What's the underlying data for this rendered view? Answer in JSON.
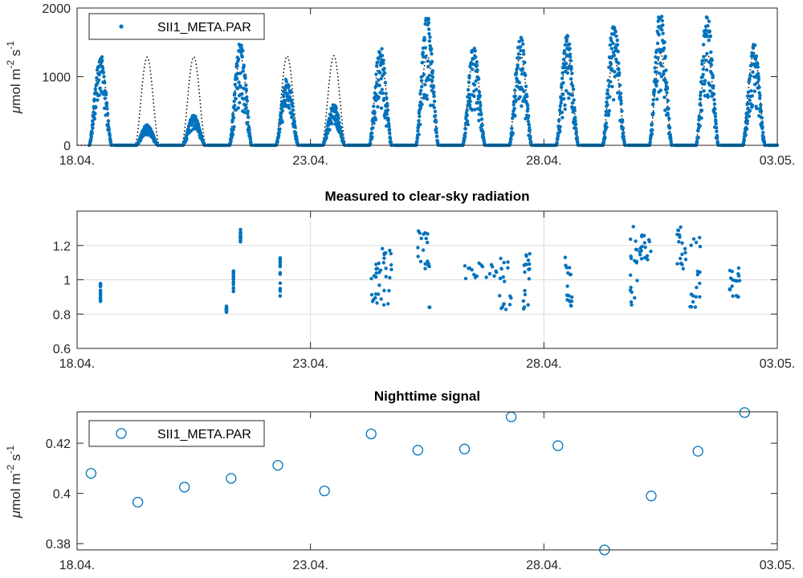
{
  "colors": {
    "series": "#0072BD",
    "clear_sky": "#000000",
    "axis": "#262626",
    "grid": "#dcdcdc"
  },
  "chart_data": [
    {
      "type": "scatter",
      "title": "",
      "xlabel": "",
      "ylabel": "μmol m⁻² s⁻¹",
      "ylabel_parts": {
        "mu": "μ",
        "main": "mol m",
        "exp1": "-2",
        "mid": " s",
        "exp2": "-1"
      },
      "xlim": [
        0,
        15
      ],
      "ylim": [
        0,
        2000
      ],
      "xticks": [
        0,
        5,
        10,
        15
      ],
      "xticklabels": [
        "18.04.",
        "23.04.",
        "28.04.",
        "03.05."
      ],
      "yticks": [
        0,
        1000,
        2000
      ],
      "yticklabels": [
        "0",
        "1000",
        "2000"
      ],
      "grid": false,
      "legend": {
        "placement": "top-left",
        "entries": [
          "SII1_META.PAR"
        ]
      },
      "series": [
        {
          "name": "SII1_META.PAR",
          "style": "dots",
          "daily_peaks": [
            1350,
            300,
            450,
            1520,
            1000,
            600,
            1480,
            1920,
            1470,
            1620,
            1620,
            1870,
            2000,
            1950,
            1500
          ]
        },
        {
          "style": "dotted-line",
          "daily_clear_sky_peak": [
            1280,
            1285,
            1290,
            1295,
            1300,
            1305,
            1310,
            1315,
            1320,
            1325,
            1330,
            1335,
            1340,
            1345,
            1350
          ]
        }
      ]
    },
    {
      "type": "scatter",
      "title": "Measured to clear-sky radiation",
      "xlabel": "",
      "ylabel": "",
      "xlim": [
        0,
        15
      ],
      "ylim": [
        0.6,
        1.4
      ],
      "xticks": [
        0,
        5,
        10,
        15
      ],
      "xticklabels": [
        "18.04.",
        "23.04.",
        "28.04.",
        "03.05."
      ],
      "yticks": [
        0.6,
        0.8,
        1.0,
        1.2
      ],
      "yticklabels": [
        "0.6",
        "0.8",
        "1",
        "1.2"
      ],
      "grid": true,
      "series": [
        {
          "style": "dots",
          "clusters": [
            {
              "x": [
                0.5,
                0.5
              ],
              "y": [
                0.87,
                0.98
              ]
            },
            {
              "x": [
                3.2,
                3.2
              ],
              "y": [
                0.81,
                0.85
              ]
            },
            {
              "x": [
                3.35,
                3.35
              ],
              "y": [
                0.93,
                1.06
              ]
            },
            {
              "x": [
                3.5,
                3.5
              ],
              "y": [
                1.22,
                1.3
              ]
            },
            {
              "x": [
                4.35,
                4.35
              ],
              "y": [
                0.9,
                1.13
              ]
            },
            {
              "x": [
                6.3,
                6.6
              ],
              "y": [
                0.85,
                1.12
              ]
            },
            {
              "x": [
                6.5,
                6.75
              ],
              "y": [
                0.8,
                1.19
              ]
            },
            {
              "x": [
                7.3,
                7.55
              ],
              "y": [
                1.05,
                1.29
              ]
            },
            {
              "x": [
                7.55,
                7.55
              ],
              "y": [
                0.84,
                0.84
              ]
            },
            {
              "x": [
                8.3,
                9.0
              ],
              "y": [
                1.0,
                1.1
              ]
            },
            {
              "x": [
                9.05,
                9.3
              ],
              "y": [
                0.8,
                1.15
              ]
            },
            {
              "x": [
                9.55,
                9.7
              ],
              "y": [
                0.83,
                1.16
              ]
            },
            {
              "x": [
                10.45,
                10.6
              ],
              "y": [
                0.82,
                1.13
              ]
            },
            {
              "x": [
                11.85,
                12.05
              ],
              "y": [
                0.81,
                1.31
              ]
            },
            {
              "x": [
                12.05,
                12.3
              ],
              "y": [
                1.1,
                1.27
              ]
            },
            {
              "x": [
                12.85,
                13.05
              ],
              "y": [
                1.05,
                1.34
              ]
            },
            {
              "x": [
                13.1,
                13.35
              ],
              "y": [
                0.84,
                1.25
              ]
            },
            {
              "x": [
                13.95,
                14.2
              ],
              "y": [
                0.89,
                1.07
              ]
            }
          ]
        }
      ]
    },
    {
      "type": "scatter",
      "title": "Nighttime signal",
      "xlabel": "",
      "ylabel": "μmol m⁻² s⁻¹",
      "ylabel_parts": {
        "mu": "μ",
        "main": "mol m",
        "exp1": "-2",
        "mid": " s",
        "exp2": "-1"
      },
      "xlim": [
        0,
        15
      ],
      "ylim": [
        0.3775,
        0.4325
      ],
      "xticks": [
        0,
        5,
        10,
        15
      ],
      "xticklabels": [
        "18.04.",
        "23.04.",
        "28.04.",
        "03.05."
      ],
      "yticks": [
        0.38,
        0.4,
        0.42
      ],
      "yticklabels": [
        "0.38",
        "0.4",
        "0.42"
      ],
      "grid": false,
      "legend": {
        "placement": "top-left",
        "entries": [
          "SII1_META.PAR"
        ]
      },
      "series": [
        {
          "name": "SII1_META.PAR",
          "style": "circles",
          "x": [
            0.3,
            1.3,
            2.3,
            3.3,
            4.3,
            5.3,
            6.3,
            7.3,
            8.3,
            9.3,
            10.3,
            11.3,
            12.3,
            13.3,
            14.3
          ],
          "y": [
            0.408,
            0.3965,
            0.4025,
            0.406,
            0.4112,
            0.401,
            0.4237,
            0.4172,
            0.4177,
            0.4305,
            0.419,
            0.3775,
            0.399,
            0.4168,
            0.4322
          ]
        }
      ]
    }
  ]
}
